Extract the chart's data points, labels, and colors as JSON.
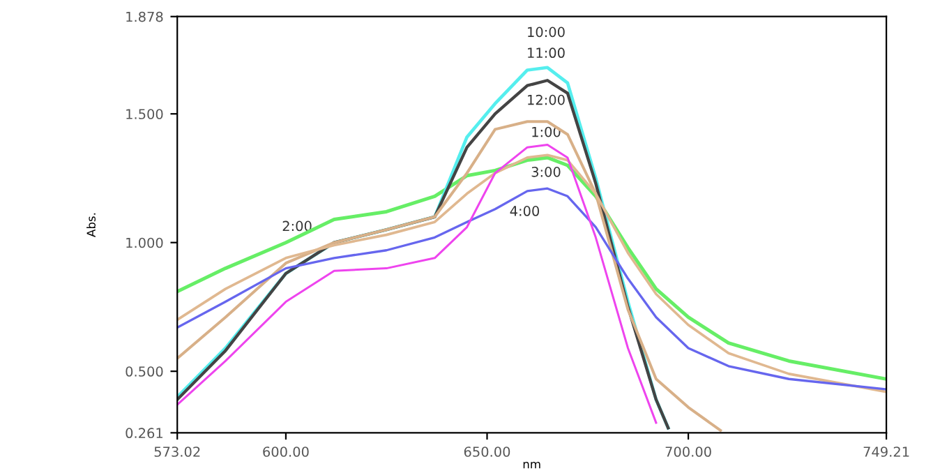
{
  "chart_data": {
    "type": "line",
    "xlabel": "nm",
    "ylabel": "Abs.",
    "xlim": [
      573.02,
      749.21
    ],
    "ylim": [
      0.261,
      1.878
    ],
    "xticks": [
      {
        "value": 573.02,
        "label": "573.02"
      },
      {
        "value": 600,
        "label": "600.00"
      },
      {
        "value": 650,
        "label": "650.00"
      },
      {
        "value": 700,
        "label": "700.00"
      },
      {
        "value": 749.21,
        "label": "749.21"
      }
    ],
    "yticks": [
      {
        "value": 0.261,
        "label": "0.261"
      },
      {
        "value": 0.5,
        "label": "0.500"
      },
      {
        "value": 1.0,
        "label": "1.000"
      },
      {
        "value": 1.5,
        "label": "1.500"
      },
      {
        "value": 1.878,
        "label": "1.878"
      }
    ],
    "grid": false,
    "marker": "none",
    "line_style": "solid",
    "series": [
      {
        "color": "#66ee66",
        "x": [
          573.02,
          585,
          600,
          612,
          625,
          637,
          645,
          652,
          660,
          665,
          670,
          677,
          685,
          692,
          700,
          710,
          725,
          749.21
        ],
        "values": [
          0.81,
          0.9,
          1.0,
          1.09,
          1.12,
          1.18,
          1.26,
          1.28,
          1.32,
          1.33,
          1.3,
          1.18,
          0.98,
          0.82,
          0.71,
          0.61,
          0.54,
          0.47
        ]
      },
      {
        "color": "#55eeee",
        "x": [
          573.02,
          585,
          600,
          612,
          625,
          637,
          645,
          652,
          660,
          665,
          670,
          677,
          685,
          692,
          695
        ],
        "values": [
          0.4,
          0.59,
          0.88,
          1.0,
          1.05,
          1.1,
          1.41,
          1.54,
          1.67,
          1.68,
          1.62,
          1.25,
          0.77,
          0.39,
          0.28
        ]
      },
      {
        "color": "#444444",
        "x": [
          573.02,
          585,
          600,
          612,
          625,
          637,
          645,
          652,
          660,
          665,
          670,
          677,
          685,
          692,
          695
        ],
        "values": [
          0.39,
          0.58,
          0.88,
          1.0,
          1.05,
          1.1,
          1.37,
          1.5,
          1.61,
          1.63,
          1.58,
          1.23,
          0.75,
          0.39,
          0.28
        ]
      },
      {
        "color": "#d8b088",
        "x": [
          573.02,
          585,
          600,
          612,
          625,
          637,
          645,
          652,
          660,
          665,
          670,
          677,
          685,
          692,
          700,
          708
        ],
        "values": [
          0.55,
          0.71,
          0.92,
          1.0,
          1.05,
          1.1,
          1.27,
          1.44,
          1.47,
          1.47,
          1.42,
          1.19,
          0.74,
          0.47,
          0.36,
          0.27
        ]
      },
      {
        "color": "#e0b890",
        "x": [
          573.02,
          585,
          600,
          612,
          625,
          637,
          645,
          652,
          660,
          665,
          670,
          677,
          685,
          692,
          700,
          710,
          725,
          749.21
        ],
        "values": [
          0.7,
          0.82,
          0.94,
          0.99,
          1.03,
          1.08,
          1.19,
          1.27,
          1.33,
          1.34,
          1.32,
          1.19,
          0.96,
          0.8,
          0.68,
          0.57,
          0.49,
          0.42
        ]
      },
      {
        "color": "#6666ee",
        "x": [
          573.02,
          585,
          600,
          612,
          625,
          637,
          645,
          652,
          660,
          665,
          670,
          677,
          685,
          692,
          700,
          710,
          725,
          749.21
        ],
        "values": [
          0.67,
          0.77,
          0.9,
          0.94,
          0.97,
          1.02,
          1.08,
          1.13,
          1.2,
          1.21,
          1.18,
          1.06,
          0.86,
          0.71,
          0.59,
          0.52,
          0.47,
          0.43
        ]
      },
      {
        "color": "#ee44ee",
        "x": [
          573.02,
          585,
          600,
          612,
          625,
          637,
          645,
          652,
          660,
          665,
          670,
          677,
          685,
          692
        ],
        "values": [
          0.37,
          0.54,
          0.77,
          0.89,
          0.9,
          0.94,
          1.06,
          1.27,
          1.37,
          1.38,
          1.33,
          1.02,
          0.59,
          0.3
        ]
      }
    ],
    "annotations": [
      "10:00",
      "11:00",
      "12:00",
      "1:00",
      "3:00",
      "4:00",
      "2:00"
    ]
  }
}
